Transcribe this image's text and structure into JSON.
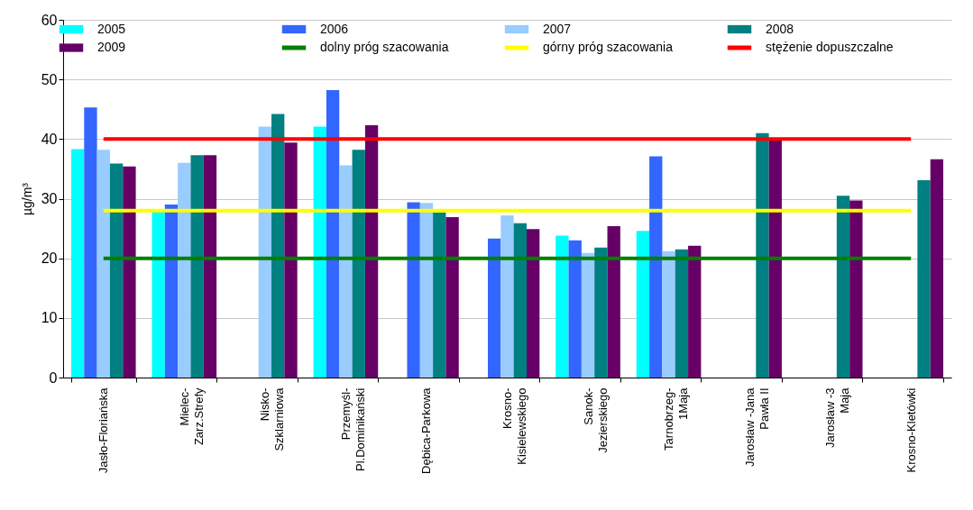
{
  "chart_data": {
    "type": "bar",
    "ylabel": "µg/m³",
    "categories": [
      "Jasło-Floriańska",
      "Mielec-\nZarz.Strefy",
      "Nisko-\nSzklarniowa",
      "Przemyśl-\nPl.Dominikański",
      "Dębica-Parkowa",
      "Krosno-\nKisielewskiego",
      "Sanok-\nJezierskiego",
      "Tarnobrzeg-\n1Maja",
      "Jarosław -Jana\nPawła II",
      "Jarosław -3\nMaja",
      "Krosno-Kletówki"
    ],
    "series": [
      {
        "name": "2005",
        "color": "#00ffff",
        "values": [
          38.3,
          28.0,
          null,
          42.1,
          null,
          null,
          23.8,
          24.6,
          null,
          null,
          null
        ]
      },
      {
        "name": "2006",
        "color": "#3366ff",
        "values": [
          45.3,
          29.0,
          null,
          48.2,
          29.4,
          23.3,
          23.0,
          37.1,
          null,
          null,
          null
        ]
      },
      {
        "name": "2007",
        "color": "#99ccff",
        "values": [
          38.2,
          36.0,
          42.1,
          35.6,
          29.3,
          27.2,
          20.9,
          21.2,
          null,
          null,
          null
        ]
      },
      {
        "name": "2008",
        "color": "#008080",
        "values": [
          35.9,
          37.3,
          44.2,
          38.2,
          27.7,
          25.9,
          21.8,
          21.5,
          41.0,
          30.5,
          33.1
        ]
      },
      {
        "name": "2009",
        "color": "#660066",
        "values": [
          35.4,
          37.3,
          39.4,
          42.3,
          26.9,
          24.9,
          25.4,
          22.1,
          40.0,
          29.7,
          36.6
        ]
      },
      {
        "name": "dolny próg szacowania",
        "type": "line",
        "color": "#008000",
        "values": [
          20,
          20,
          20,
          20,
          20,
          20,
          20,
          20,
          20,
          20,
          20
        ]
      },
      {
        "name": "górny próg szacowania",
        "type": "line",
        "color": "#ffff00",
        "values": [
          28,
          28,
          28,
          28,
          28,
          28,
          28,
          28,
          28,
          28,
          28
        ]
      },
      {
        "name": "stężenie dopuszczalne",
        "type": "line",
        "color": "#ff0000",
        "values": [
          40,
          40,
          40,
          40,
          40,
          40,
          40,
          40,
          40,
          40,
          40
        ]
      }
    ],
    "ylim": [
      0,
      60
    ],
    "yticks": [
      0,
      10,
      20,
      30,
      40,
      50,
      60
    ],
    "grid": "y",
    "legend": "top"
  }
}
